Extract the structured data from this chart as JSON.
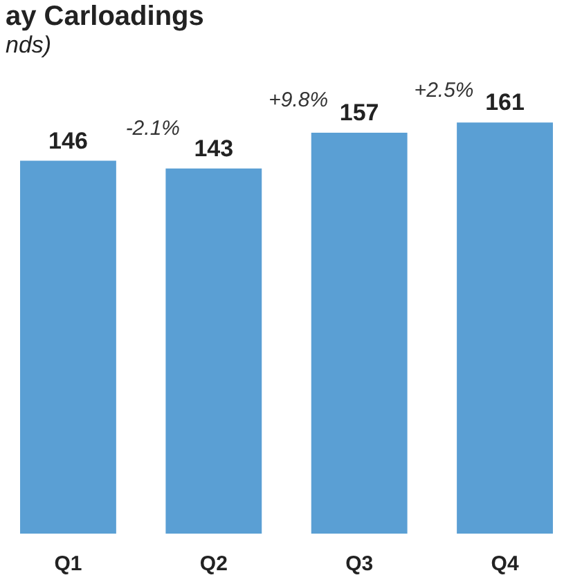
{
  "chart_data": {
    "type": "bar",
    "title": "ay Carloadings",
    "subtitle": "nds)",
    "categories": [
      "Q1",
      "Q2",
      "Q3",
      "Q4"
    ],
    "values": [
      146,
      143,
      157,
      161
    ],
    "color": "#5a9fd4",
    "data_labels": true,
    "tick_labels": "x",
    "grid": false,
    "annotations": [
      "-2.1%",
      "+9.8%",
      "+2.5%"
    ]
  }
}
